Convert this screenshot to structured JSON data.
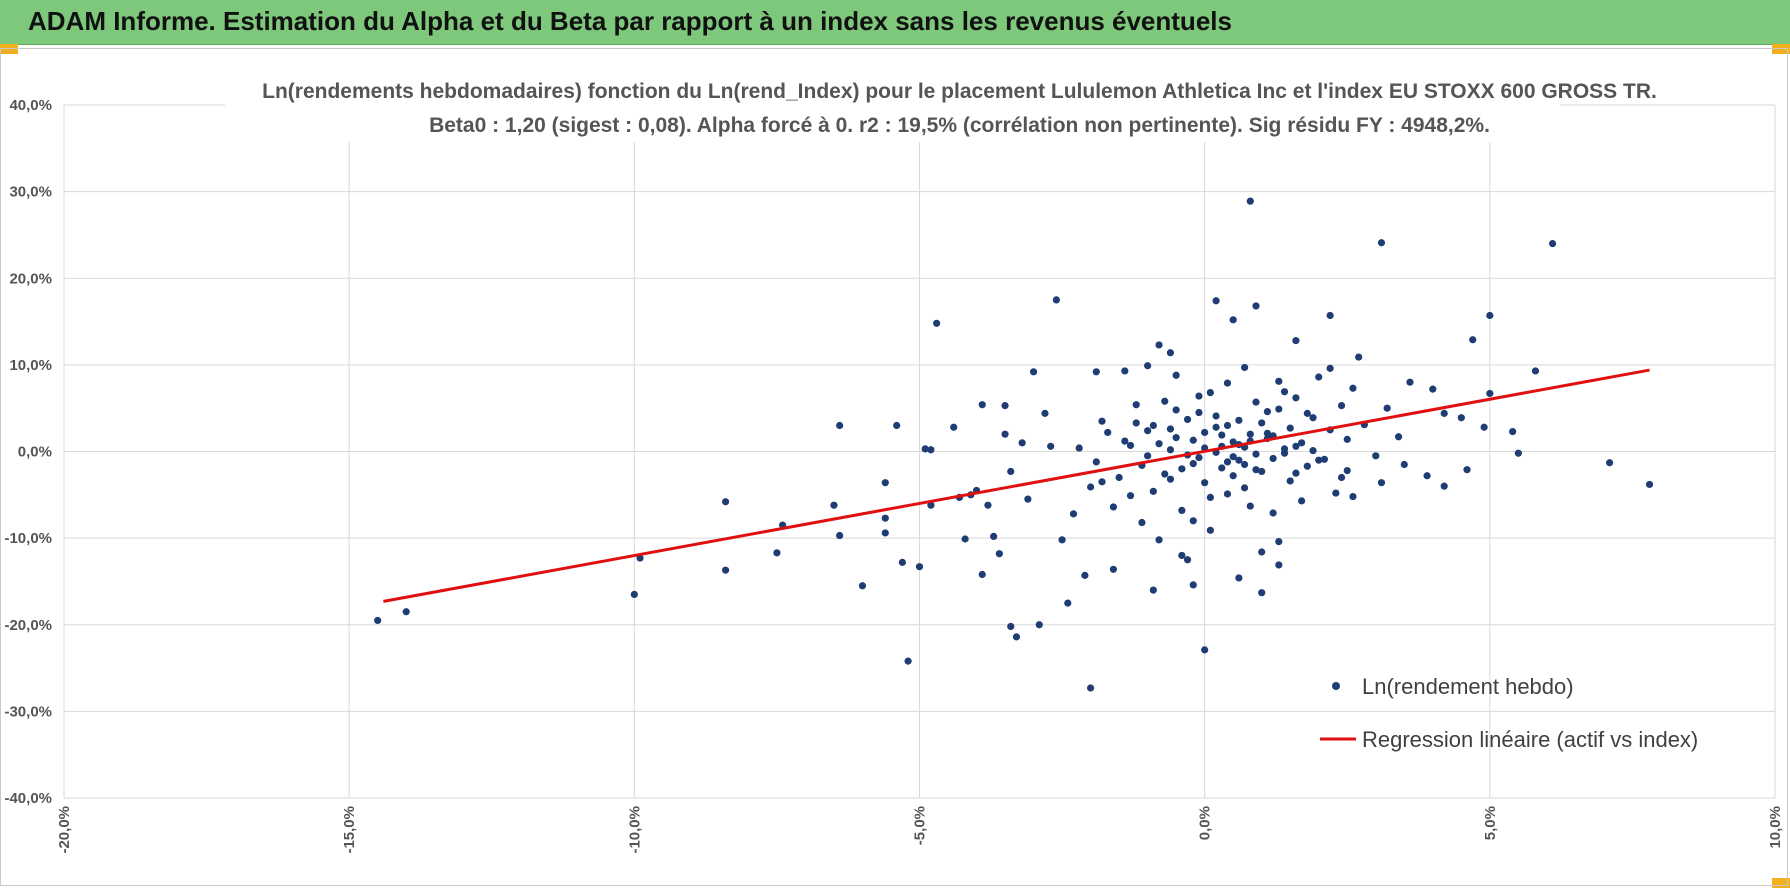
{
  "banner": {
    "title": "ADAM Informe. Estimation du Alpha et du Beta par rapport à un index sans les revenus éventuels",
    "color": "#7ec87c"
  },
  "chart_data": {
    "type": "scatter",
    "title_line1": "Ln(rendements hebdomadaires) fonction du Ln(rend_Index) pour le placement Lululemon Athletica Inc et l'index EU STOXX 600 GROSS TR.",
    "title_line2": "Beta0 : 1,20 (sigest : 0,08).  Alpha forcé à 0. r2 : 19,5% (corrélation non pertinente). Sig résidu FY : 4948,2%.",
    "xlim": [
      -20,
      10
    ],
    "ylim": [
      -40,
      40
    ],
    "x_ticks": [
      "-20,0%",
      "-15,0%",
      "-10,0%",
      "-5,0%",
      "0,0%",
      "5,0%",
      "10,0%"
    ],
    "y_ticks": [
      "40,0%",
      "30,0%",
      "20,0%",
      "10,0%",
      "0,0%",
      "-10,0%",
      "-20,0%",
      "-30,0%",
      "-40,0%"
    ],
    "grid": true,
    "legend_position": "bottom-right",
    "series": [
      {
        "name": "Ln(rendement hebdo)",
        "kind": "scatter",
        "color": "#1f3d73",
        "points": [
          [
            -14.5,
            -19.5
          ],
          [
            -14.0,
            -18.5
          ],
          [
            -10.0,
            -16.5
          ],
          [
            -9.9,
            -12.3
          ],
          [
            -8.4,
            -5.8
          ],
          [
            -8.4,
            -13.7
          ],
          [
            -7.5,
            -11.7
          ],
          [
            -7.4,
            -8.5
          ],
          [
            -6.5,
            -6.2
          ],
          [
            -6.4,
            3.0
          ],
          [
            -6.4,
            -9.7
          ],
          [
            -6.0,
            -15.5
          ],
          [
            -5.6,
            -3.6
          ],
          [
            -5.6,
            -7.7
          ],
          [
            -5.6,
            -9.4
          ],
          [
            -5.4,
            3.0
          ],
          [
            -5.3,
            -12.8
          ],
          [
            -5.2,
            -24.2
          ],
          [
            -5.0,
            -13.3
          ],
          [
            -4.9,
            0.3
          ],
          [
            -4.8,
            -6.2
          ],
          [
            -4.8,
            0.2
          ],
          [
            -4.7,
            14.8
          ],
          [
            -4.4,
            2.8
          ],
          [
            -4.3,
            -5.3
          ],
          [
            -4.2,
            -10.1
          ],
          [
            -4.1,
            -5.0
          ],
          [
            -4.0,
            -4.5
          ],
          [
            -3.9,
            5.4
          ],
          [
            -3.9,
            -14.2
          ],
          [
            -3.8,
            -6.2
          ],
          [
            -3.7,
            -9.8
          ],
          [
            -3.6,
            -11.8
          ],
          [
            -3.5,
            5.3
          ],
          [
            -3.5,
            2.0
          ],
          [
            -3.4,
            -2.3
          ],
          [
            -3.4,
            -20.2
          ],
          [
            -3.3,
            -21.4
          ],
          [
            -3.2,
            1.0
          ],
          [
            -3.1,
            -5.5
          ],
          [
            -3.0,
            9.2
          ],
          [
            -2.9,
            -20.0
          ],
          [
            -2.8,
            4.4
          ],
          [
            -2.7,
            0.6
          ],
          [
            -2.6,
            17.5
          ],
          [
            -2.5,
            -10.2
          ],
          [
            -2.4,
            -17.5
          ],
          [
            -2.3,
            -7.2
          ],
          [
            -2.1,
            -14.3
          ],
          [
            -2.0,
            -27.3
          ],
          [
            -1.9,
            9.2
          ],
          [
            -1.8,
            -3.5
          ],
          [
            -1.6,
            -13.6
          ],
          [
            -1.4,
            9.3
          ],
          [
            -1.2,
            3.3
          ],
          [
            -1.0,
            9.9
          ],
          [
            -0.9,
            -16.0
          ],
          [
            -0.8,
            12.3
          ],
          [
            -0.6,
            11.4
          ],
          [
            -0.4,
            -12.0
          ],
          [
            -0.3,
            -12.5
          ],
          [
            -0.2,
            -15.4
          ],
          [
            0.0,
            -22.9
          ],
          [
            0.2,
            17.4
          ],
          [
            0.5,
            15.2
          ],
          [
            0.6,
            -14.6
          ],
          [
            0.8,
            28.9
          ],
          [
            0.9,
            16.8
          ],
          [
            1.0,
            -16.3
          ],
          [
            1.3,
            -13.1
          ],
          [
            1.6,
            12.8
          ],
          [
            2.2,
            15.7
          ],
          [
            2.6,
            -5.2
          ],
          [
            2.7,
            10.9
          ],
          [
            3.1,
            24.1
          ],
          [
            3.1,
            -3.6
          ],
          [
            3.5,
            -1.5
          ],
          [
            3.6,
            8.0
          ],
          [
            3.9,
            -2.8
          ],
          [
            4.0,
            7.2
          ],
          [
            4.2,
            4.4
          ],
          [
            4.2,
            -4.0
          ],
          [
            4.5,
            3.9
          ],
          [
            4.6,
            -2.1
          ],
          [
            4.7,
            12.9
          ],
          [
            4.9,
            2.8
          ],
          [
            5.0,
            15.7
          ],
          [
            5.0,
            6.7
          ],
          [
            5.4,
            2.3
          ],
          [
            5.5,
            -0.2
          ],
          [
            5.8,
            9.3
          ],
          [
            6.1,
            24.0
          ],
          [
            7.1,
            -1.3
          ],
          [
            7.8,
            -3.8
          ],
          [
            -1.5,
            -3.0
          ],
          [
            -1.4,
            1.2
          ],
          [
            -1.3,
            -5.1
          ],
          [
            -1.2,
            5.4
          ],
          [
            -1.1,
            -1.6
          ],
          [
            -1.0,
            2.4
          ],
          [
            -0.9,
            -4.6
          ],
          [
            -0.8,
            0.9
          ],
          [
            -0.7,
            5.8
          ],
          [
            -0.6,
            -3.2
          ],
          [
            -0.5,
            1.6
          ],
          [
            -0.4,
            -6.8
          ],
          [
            -0.3,
            3.7
          ],
          [
            -0.2,
            -1.4
          ],
          [
            -0.1,
            6.4
          ],
          [
            0.0,
            0.4
          ],
          [
            0.1,
            -5.3
          ],
          [
            0.2,
            2.8
          ],
          [
            0.3,
            -1.9
          ],
          [
            0.4,
            7.9
          ],
          [
            0.5,
            -0.6
          ],
          [
            0.6,
            3.6
          ],
          [
            0.7,
            -4.2
          ],
          [
            0.8,
            1.2
          ],
          [
            0.9,
            5.7
          ],
          [
            1.0,
            -2.3
          ],
          [
            1.1,
            2.1
          ],
          [
            1.2,
            -7.1
          ],
          [
            1.3,
            4.9
          ],
          [
            1.4,
            0.3
          ],
          [
            1.5,
            -3.4
          ],
          [
            1.6,
            6.2
          ],
          [
            1.7,
            1.0
          ],
          [
            1.8,
            -1.7
          ],
          [
            1.9,
            3.9
          ],
          [
            2.0,
            8.6
          ],
          [
            2.1,
            -0.9
          ],
          [
            2.2,
            2.5
          ],
          [
            2.3,
            -4.8
          ],
          [
            2.4,
            5.3
          ],
          [
            2.5,
            1.4
          ],
          [
            2.6,
            7.3
          ],
          [
            -1.9,
            -1.2
          ],
          [
            -1.7,
            2.2
          ],
          [
            -1.6,
            -6.4
          ],
          [
            -1.3,
            0.7
          ],
          [
            -1.1,
            -8.2
          ],
          [
            -0.9,
            3.0
          ],
          [
            -0.7,
            -2.6
          ],
          [
            -0.5,
            8.8
          ],
          [
            -0.3,
            -0.4
          ],
          [
            -0.1,
            4.5
          ],
          [
            0.1,
            -9.1
          ],
          [
            0.3,
            1.9
          ],
          [
            0.5,
            -2.8
          ],
          [
            0.7,
            9.7
          ],
          [
            0.9,
            -0.3
          ],
          [
            1.1,
            4.6
          ],
          [
            1.3,
            -10.4
          ],
          [
            1.5,
            2.7
          ],
          [
            1.7,
            -5.7
          ],
          [
            1.9,
            0.1
          ],
          [
            -2.2,
            0.4
          ],
          [
            -2.0,
            -4.1
          ],
          [
            -1.8,
            3.5
          ],
          [
            -0.6,
            0.2
          ],
          [
            -0.4,
            -2.0
          ],
          [
            -0.2,
            1.3
          ],
          [
            0.0,
            -3.6
          ],
          [
            0.2,
            4.1
          ],
          [
            0.4,
            -1.2
          ],
          [
            0.6,
            0.8
          ],
          [
            0.8,
            -6.3
          ],
          [
            1.0,
            3.3
          ],
          [
            1.2,
            -0.8
          ],
          [
            1.4,
            6.9
          ],
          [
            1.6,
            -2.5
          ],
          [
            1.8,
            4.4
          ],
          [
            2.0,
            -1.0
          ],
          [
            2.2,
            9.6
          ],
          [
            2.4,
            -3.0
          ],
          [
            2.8,
            3.1
          ],
          [
            3.0,
            -0.5
          ],
          [
            3.2,
            5.0
          ],
          [
            3.4,
            1.7
          ],
          [
            -0.8,
            -10.2
          ],
          [
            -0.5,
            4.8
          ],
          [
            -0.2,
            -8.0
          ],
          [
            0.1,
            6.8
          ],
          [
            0.4,
            -4.9
          ],
          [
            0.7,
            0.5
          ],
          [
            1.0,
            -11.6
          ],
          [
            1.3,
            8.1
          ],
          [
            1.6,
            0.6
          ],
          [
            0.2,
            -0.1
          ],
          [
            0.3,
            0.6
          ],
          [
            0.5,
            1.1
          ],
          [
            0.6,
            -1.0
          ],
          [
            0.8,
            2.0
          ],
          [
            0.9,
            -2.1
          ],
          [
            1.1,
            1.5
          ],
          [
            0.0,
            2.2
          ],
          [
            -0.1,
            -0.7
          ],
          [
            1.4,
            -0.2
          ],
          [
            -1.0,
            -0.5
          ],
          [
            -0.6,
            2.6
          ],
          [
            2.5,
            -2.2
          ],
          [
            1.2,
            1.8
          ],
          [
            0.4,
            3.0
          ],
          [
            0.7,
            -1.5
          ]
        ]
      },
      {
        "name": "Regression linéaire (actif vs index)",
        "kind": "line",
        "color": "#e01010",
        "points": [
          [
            -14.4,
            -17.3
          ],
          [
            7.8,
            9.4
          ]
        ]
      }
    ]
  }
}
